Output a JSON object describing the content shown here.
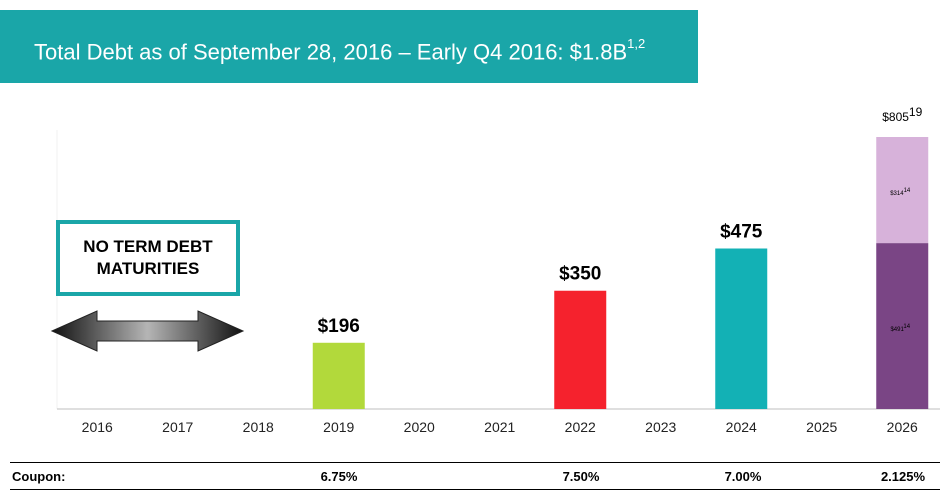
{
  "banner": {
    "title": "Total Debt as of September 28, 2016 – Early Q4 2016:  $1.8B",
    "superscript": "1,2"
  },
  "note": {
    "line1": "NO TERM DEBT",
    "line2": "MATURITIES"
  },
  "coupon": {
    "label": "Coupon:",
    "values": [
      {
        "year": "2019",
        "rate": "6.75%"
      },
      {
        "year": "2022",
        "rate": "7.50%"
      },
      {
        "year": "2024",
        "rate": "7.00%"
      },
      {
        "year": "2026",
        "rate": "2.125%"
      }
    ]
  },
  "chart_data": {
    "type": "bar",
    "categories": [
      "2016",
      "2017",
      "2018",
      "2019",
      "2020",
      "2021",
      "2022",
      "2023",
      "2024",
      "2025",
      "2026"
    ],
    "bars": [
      {
        "category": "2019",
        "value": 196,
        "label": "$196",
        "color": "#b2d93b"
      },
      {
        "category": "2022",
        "value": 350,
        "label": "$350",
        "color": "#f5222d"
      },
      {
        "category": "2024",
        "value": 475,
        "label": "$475",
        "color": "#13b1b5"
      },
      {
        "category": "2026",
        "stack": [
          {
            "value": 491,
            "label": "$491",
            "sup": "(2)",
            "color": "#7a4585"
          },
          {
            "value": 314,
            "label": "$314",
            "sup": "(2)",
            "color": "#d7b2da"
          }
        ],
        "total_label": "$805",
        "total_sup": "(2)"
      }
    ],
    "ylim": [
      0,
      805
    ],
    "title": "",
    "xlabel": "",
    "ylabel": ""
  }
}
